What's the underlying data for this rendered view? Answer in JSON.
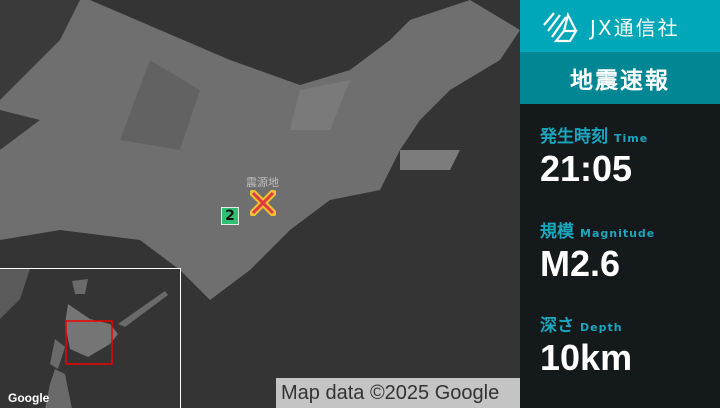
{
  "map": {
    "epicenter_label": "震源地",
    "intensity": "2",
    "intensity_color": "#2fbf72",
    "attribution": "Map data ©2025 Google",
    "inset_logo": "Google"
  },
  "panel": {
    "brand": "JX通信社",
    "title": "地震速報",
    "accent": "#00a7b8",
    "time": {
      "label": "発生時刻",
      "label_en": "Time",
      "value": "21:05"
    },
    "magnitude": {
      "label": "規模",
      "label_en": "Magnitude",
      "value": "M2.6"
    },
    "depth": {
      "label": "深さ",
      "label_en": "Depth",
      "value": "10km"
    }
  }
}
